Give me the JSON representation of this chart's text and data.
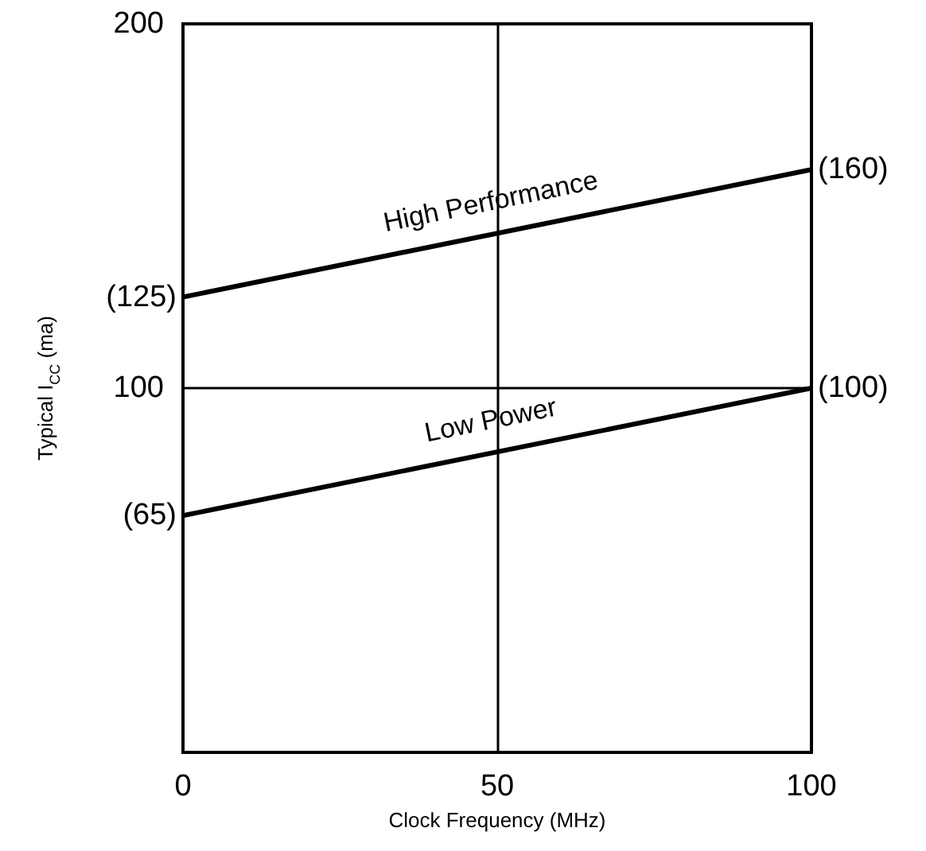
{
  "chart_data": {
    "type": "line",
    "xlabel": "Clock Frequency (MHz)",
    "ylabel": "Typical I$_{CC}$ (ma)",
    "x": [
      0,
      100
    ],
    "xlim": [
      0,
      100
    ],
    "xticks": [
      0,
      50,
      100
    ],
    "ylim": [
      0,
      200
    ],
    "yticks": [
      {
        "value": 0,
        "label": null
      },
      100,
      200
    ],
    "grid": true,
    "legend": false,
    "marker": "none",
    "line_style": "solid",
    "series": [
      {
        "name": "High Performance",
        "color": "#000000",
        "values": [
          125,
          160
        ],
        "value_labels": [
          "(125)",
          "(160)"
        ]
      },
      {
        "name": "Low Power",
        "color": "#000000",
        "values": [
          65,
          100
        ],
        "value_labels": [
          "(65)",
          "(100)"
        ]
      }
    ]
  }
}
